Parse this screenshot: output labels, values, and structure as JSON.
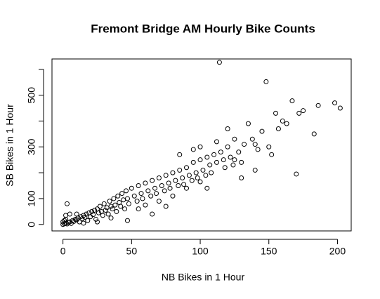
{
  "chart_data": {
    "type": "scatter",
    "title": "Fremont Bridge AM Hourly Bike Counts",
    "xlabel": "NB Bikes in 1 Hour",
    "ylabel": "SB Bikes in 1 Hour",
    "color": "#000000",
    "x": [
      0,
      1,
      2,
      3,
      4,
      5,
      6,
      7,
      8,
      9,
      10,
      11,
      12,
      13,
      14,
      15,
      16,
      17,
      18,
      19,
      20,
      21,
      22,
      23,
      24,
      25,
      26,
      27,
      28,
      29,
      30,
      31,
      32,
      33,
      34,
      35,
      36,
      37,
      38,
      39,
      40,
      41,
      42,
      43,
      44,
      45,
      46,
      47,
      48,
      50,
      52,
      54,
      55,
      57,
      58,
      60,
      62,
      64,
      65,
      67,
      68,
      70,
      72,
      74,
      75,
      77,
      78,
      80,
      82,
      84,
      85,
      87,
      88,
      90,
      92,
      94,
      95,
      97,
      98,
      100,
      102,
      104,
      105,
      107,
      108,
      110,
      112,
      114,
      115,
      117,
      118,
      120,
      122,
      124,
      125,
      128,
      130,
      132,
      135,
      138,
      140,
      142,
      145,
      148,
      150,
      152,
      155,
      157,
      160,
      163,
      167,
      170,
      172,
      175,
      183,
      186,
      198,
      202,
      47,
      60,
      70,
      80,
      90,
      100,
      3,
      5,
      2,
      10,
      15,
      25,
      35,
      55,
      65,
      75,
      112,
      120,
      125,
      95,
      100,
      85,
      105,
      130,
      140,
      0,
      1,
      2
    ],
    "values": [
      0,
      3,
      5,
      2,
      8,
      10,
      4,
      15,
      12,
      20,
      18,
      25,
      10,
      30,
      22,
      35,
      28,
      40,
      15,
      45,
      30,
      50,
      38,
      55,
      20,
      60,
      45,
      70,
      50,
      35,
      80,
      55,
      65,
      40,
      90,
      70,
      60,
      100,
      75,
      50,
      110,
      85,
      70,
      120,
      95,
      60,
      130,
      100,
      80,
      140,
      110,
      90,
      150,
      120,
      100,
      160,
      130,
      110,
      170,
      140,
      120,
      180,
      150,
      130,
      190,
      160,
      140,
      200,
      170,
      150,
      210,
      180,
      155,
      220,
      190,
      170,
      240,
      200,
      180,
      250,
      210,
      190,
      260,
      230,
      200,
      270,
      240,
      627,
      280,
      250,
      220,
      300,
      260,
      230,
      250,
      280,
      240,
      310,
      390,
      330,
      310,
      290,
      360,
      552,
      300,
      270,
      430,
      370,
      400,
      390,
      478,
      195,
      430,
      440,
      350,
      460,
      470,
      450,
      15,
      75,
      90,
      110,
      140,
      165,
      80,
      40,
      20,
      40,
      5,
      10,
      25,
      60,
      40,
      70,
      320,
      370,
      330,
      290,
      300,
      270,
      140,
      180,
      210,
      10,
      15,
      35
    ],
    "xlim": [
      -8,
      210
    ],
    "ylim": [
      -25,
      640
    ],
    "xticks": [
      0,
      50,
      100,
      150,
      200
    ],
    "yticks": [
      0,
      100,
      {
        "value": 200,
        "label": null
      },
      300,
      {
        "value": 400,
        "label": null
      },
      500,
      {
        "value": 600,
        "label": null
      }
    ]
  }
}
